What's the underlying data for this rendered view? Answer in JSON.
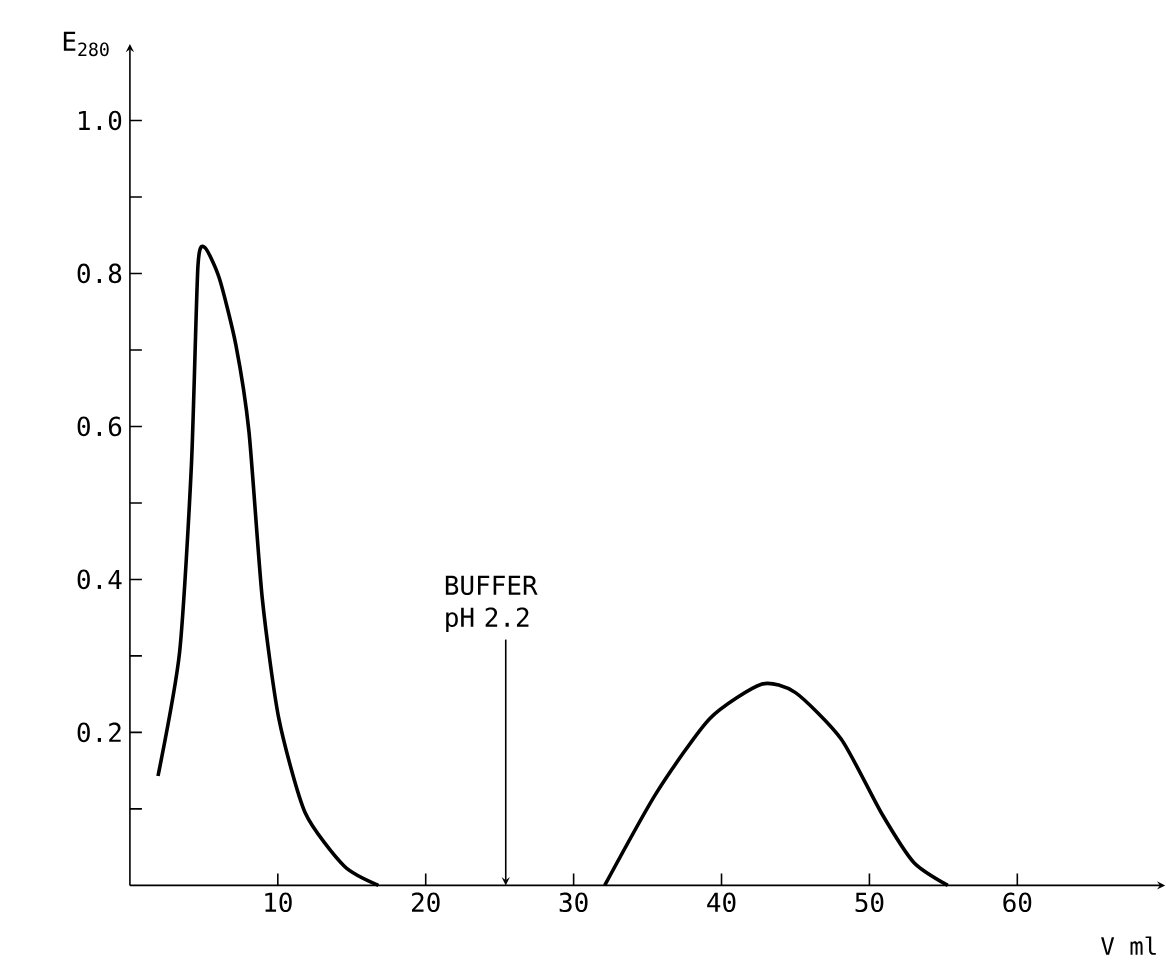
{
  "chart_data": {
    "type": "line",
    "xlabel": "V ml",
    "ylabel": "E$_{280}$",
    "x": [
      1.9,
      3.36,
      4.16,
      4.6,
      5.06,
      6.04,
      7.16,
      8.05,
      8.95,
      10.07,
      11.85,
      14.5,
      16.8,
      24,
      32.1,
      35.6,
      39.2,
      42.7,
      45.0,
      48.1,
      50.8,
      53.0,
      55.3
    ],
    "series": [
      {
        "color": "#000000",
        "values": [
          0.143,
          0.305,
          0.55,
          0.81,
          0.834,
          0.794,
          0.707,
          0.593,
          0.375,
          0.218,
          0.095,
          0.025,
          0,
          null,
          0,
          0.121,
          0.218,
          0.263,
          0.252,
          0.191,
          0.095,
          0.03,
          0
        ]
      }
    ],
    "xlim": [
      0,
      70
    ],
    "ylim": [
      0,
      1.1
    ],
    "xticks": [
      10,
      20,
      30,
      40,
      50,
      60
    ],
    "yticks": [
      {
        "value": 0.1,
        "label": null
      },
      0.2,
      {
        "value": 0.3,
        "label": null
      },
      0.4,
      {
        "value": 0.5,
        "label": null
      },
      0.6,
      {
        "value": 0.7,
        "label": null
      },
      0.8,
      {
        "value": 0.9,
        "label": null
      },
      {
        "value": 1.0,
        "label": "1.0"
      }
    ],
    "annotations": [
      "BUFFER pH 2.2"
    ],
    "grid": false,
    "marker": "none",
    "line_style": "solid"
  }
}
